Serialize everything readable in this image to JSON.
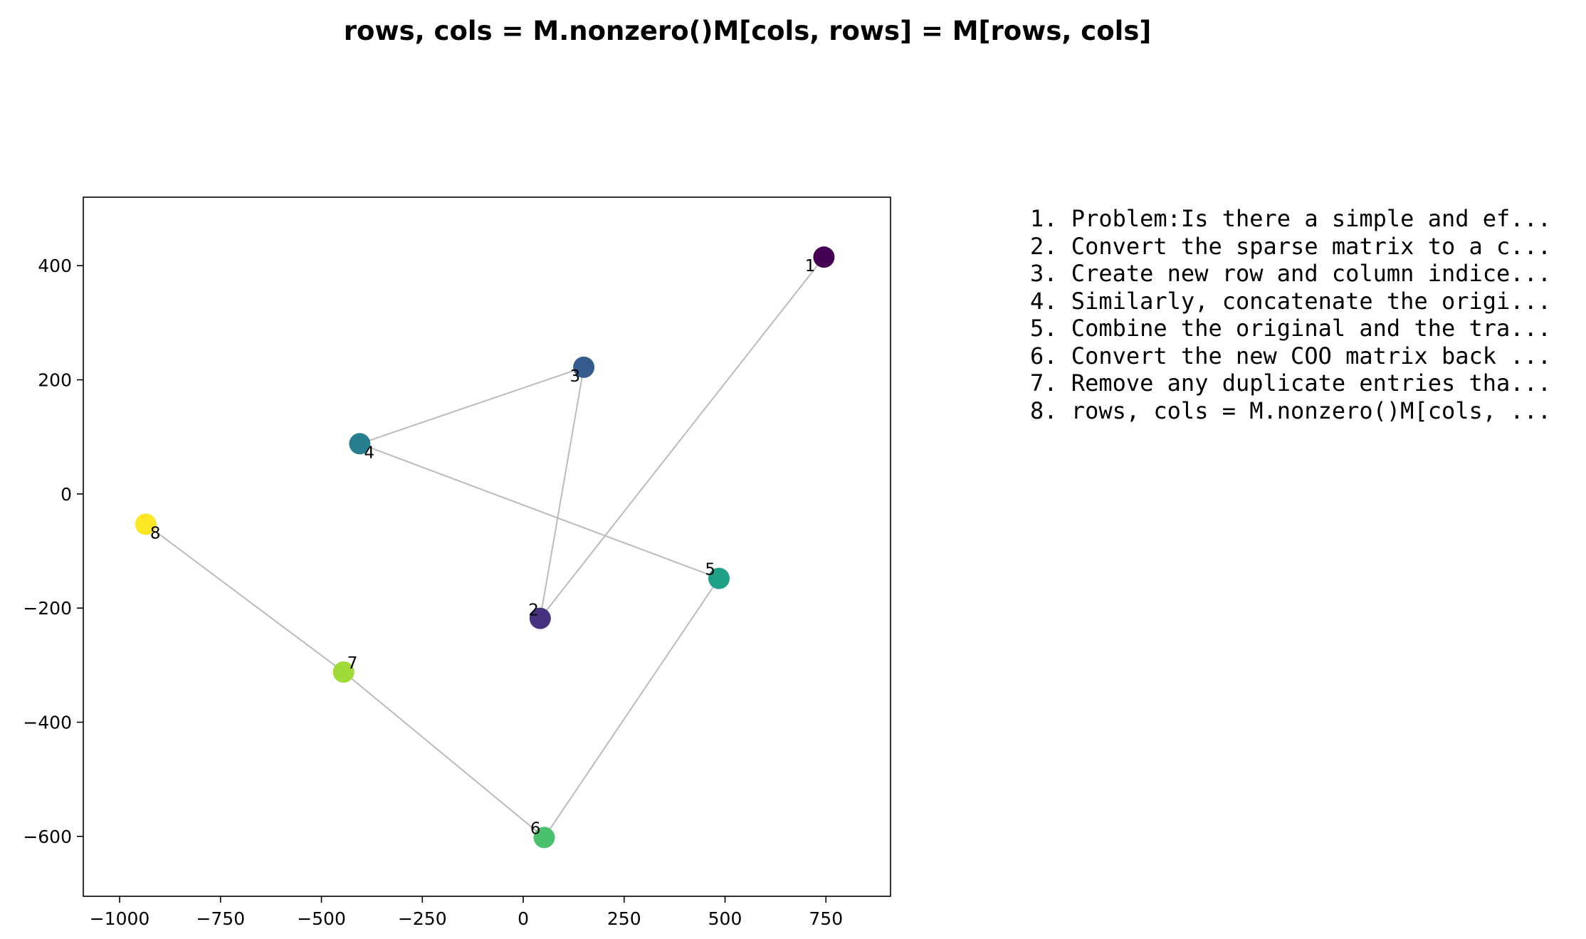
{
  "chart_data": {
    "type": "scatter",
    "title": "rows, cols = M.nonzero()M[cols, rows] = M[rows, cols]",
    "xlim": [
      -1090,
      910
    ],
    "ylim": [
      -705,
      520
    ],
    "xticks": [
      -1000,
      -750,
      -500,
      -250,
      0,
      250,
      500,
      750
    ],
    "yticks": [
      -600,
      -400,
      -200,
      0,
      200,
      400
    ],
    "xtick_labels": [
      "−1000",
      "−750",
      "−500",
      "−250",
      "0",
      "250",
      "500",
      "750"
    ],
    "ytick_labels": [
      "−600",
      "−400",
      "−200",
      "0",
      "200",
      "400"
    ],
    "grid": false,
    "points": [
      {
        "label": "1",
        "x": 745,
        "y": 415,
        "color": "#440154"
      },
      {
        "label": "2",
        "x": 42,
        "y": -218,
        "color": "#46327e"
      },
      {
        "label": "3",
        "x": 150,
        "y": 222,
        "color": "#365c8d"
      },
      {
        "label": "4",
        "x": -405,
        "y": 88,
        "color": "#277f8e"
      },
      {
        "label": "5",
        "x": 485,
        "y": -148,
        "color": "#1fa187"
      },
      {
        "label": "6",
        "x": 52,
        "y": -602,
        "color": "#4ac16d"
      },
      {
        "label": "7",
        "x": -445,
        "y": -312,
        "color": "#a0da39"
      },
      {
        "label": "8",
        "x": -935,
        "y": -53,
        "color": "#fde725"
      }
    ],
    "path_order": [
      "1",
      "2",
      "3",
      "4",
      "5",
      "6",
      "7",
      "8"
    ],
    "line_color": "#bbbbbb"
  },
  "steps": [
    "1. Problem:Is there a simple and ef...",
    "2. Convert the sparse matrix to a c...",
    "3. Create new row and column indice...",
    "4. Similarly, concatenate the origi...",
    "5. Combine the original and the tra...",
    "6. Convert the new COO matrix back ...",
    "7. Remove any duplicate entries tha...",
    "8. rows, cols = M.nonzero()M[cols, ..."
  ]
}
